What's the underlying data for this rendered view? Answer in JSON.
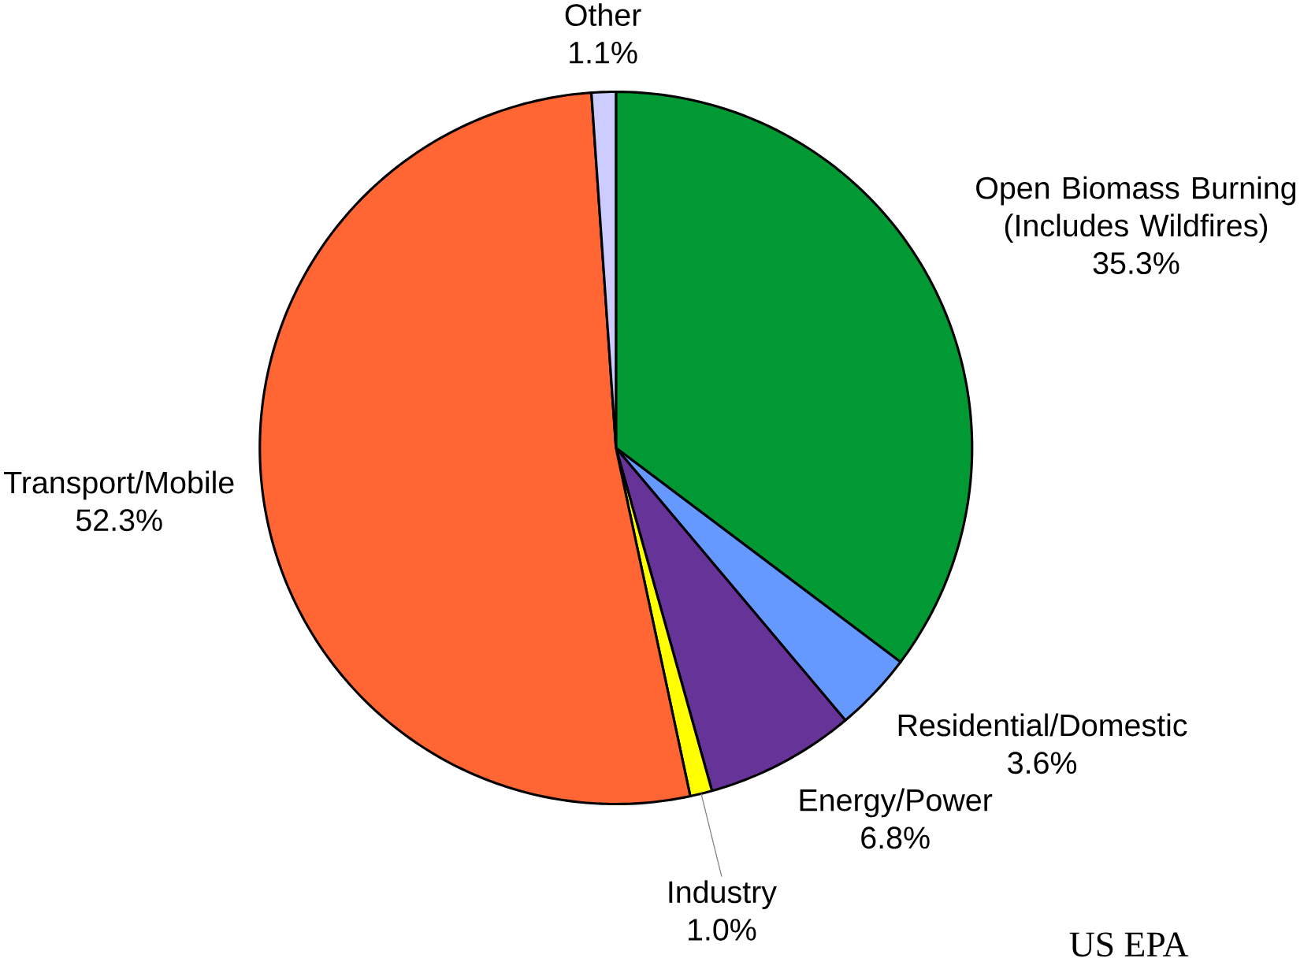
{
  "chart_data": {
    "type": "pie",
    "categories": [
      "Open Biomass Burning (Includes Wildfires)",
      "Residential/Domestic",
      "Energy/Power",
      "Industry",
      "Transport/Mobile",
      "Other"
    ],
    "values": [
      35.3,
      3.6,
      6.8,
      1.0,
      52.3,
      1.1
    ],
    "value_labels": [
      "35.3%",
      "3.6%",
      "6.8%",
      "1.0%",
      "52.3%",
      "1.1%"
    ],
    "colors": [
      "#009933",
      "#6699ff",
      "#663399",
      "#ffff00",
      "#ff6633",
      "#ccccff"
    ],
    "annotations": [
      "US EPA"
    ]
  }
}
